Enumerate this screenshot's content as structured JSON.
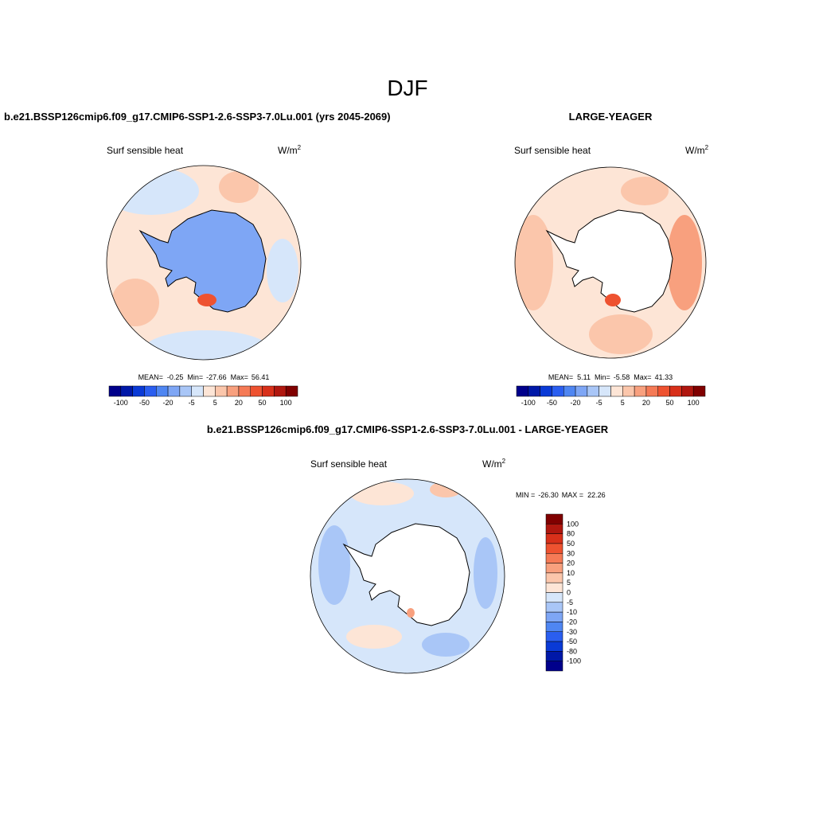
{
  "title": "DJF",
  "colors": [
    "#00008b",
    "#0018a8",
    "#0a3ad6",
    "#2a5ef0",
    "#4f86f2",
    "#7ea6f5",
    "#a9c6f7",
    "#d6e6fa",
    "#fde5d6",
    "#fbc6ab",
    "#f8a07e",
    "#f57a56",
    "#ee5230",
    "#d8301a",
    "#b0170f",
    "#800000"
  ],
  "panels": [
    {
      "title": "b.e21.BSSP126cmip6.f09_g17.CMIP6-SSP1-2.6-SSP3-7.0Lu.001 (yrs 2045-2069)",
      "variable": "Surf sensible heat",
      "units": "W/m",
      "units_sup": "2",
      "stats": {
        "mean_label": "MEAN=",
        "mean": -0.25,
        "min_label": "Min=",
        "min": -27.66,
        "max_label": "Max=",
        "max": 56.41
      },
      "colorbar_labels": [
        -100,
        -50,
        -20,
        -5,
        5,
        20,
        50,
        100
      ]
    },
    {
      "title": "LARGE-YEAGER",
      "variable": "Surf sensible heat",
      "units": "W/m",
      "units_sup": "2",
      "stats": {
        "mean_label": "MEAN=",
        "mean": 5.11,
        "min_label": "Min=",
        "min": -5.58,
        "max_label": "Max=",
        "max": 41.33
      },
      "colorbar_labels": [
        -100,
        -50,
        -20,
        -5,
        5,
        20,
        50,
        100
      ]
    },
    {
      "title": "b.e21.BSSP126cmip6.f09_g17.CMIP6-SSP1-2.6-SSP3-7.0Lu.001 - LARGE-YEAGER",
      "variable": "Surf sensible heat",
      "units": "W/m",
      "units_sup": "2",
      "stats": {
        "min_label": "MIN =",
        "min": "-26.30",
        "max_label": "MAX =",
        "max": 22.26
      },
      "colorbar_labels": [
        100,
        80,
        50,
        30,
        20,
        10,
        5,
        0,
        -5,
        -10,
        -20,
        -30,
        -50,
        -80,
        -100
      ]
    }
  ]
}
